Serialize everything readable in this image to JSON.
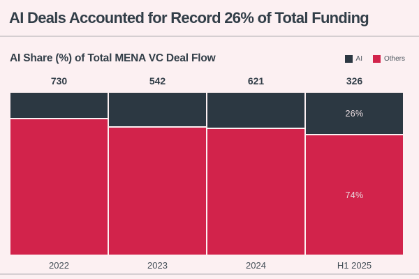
{
  "header": {
    "title": "AI Deals Accounted for Record 26% of Total Funding"
  },
  "chart_data": {
    "type": "bar",
    "variant": "100-percent-stacked-column",
    "title": "AI Share (%) of Total MENA VC Deal Flow",
    "categories": [
      "2022",
      "2023",
      "2024",
      "H1 2025"
    ],
    "bar_totals": [
      730,
      542,
      621,
      326
    ],
    "series": [
      {
        "name": "AI",
        "color": "#2c3842",
        "values": [
          16,
          21,
          22,
          26
        ],
        "labels": [
          "",
          "",
          "",
          "26%"
        ]
      },
      {
        "name": "Others",
        "color": "#d2234b",
        "values": [
          84,
          79,
          78,
          74
        ],
        "labels": [
          "",
          "",
          "",
          "74%"
        ]
      }
    ],
    "ylim": [
      0,
      100
    ],
    "grid": false,
    "legend_position": "top-right"
  },
  "colors": {
    "background": "#fcf0f2",
    "ai_segment": "#2c3842",
    "others_segment": "#d2234b",
    "title_text": "#323e48",
    "divider": "#d5ced1",
    "segment_label_text": "#e9dbdf"
  }
}
